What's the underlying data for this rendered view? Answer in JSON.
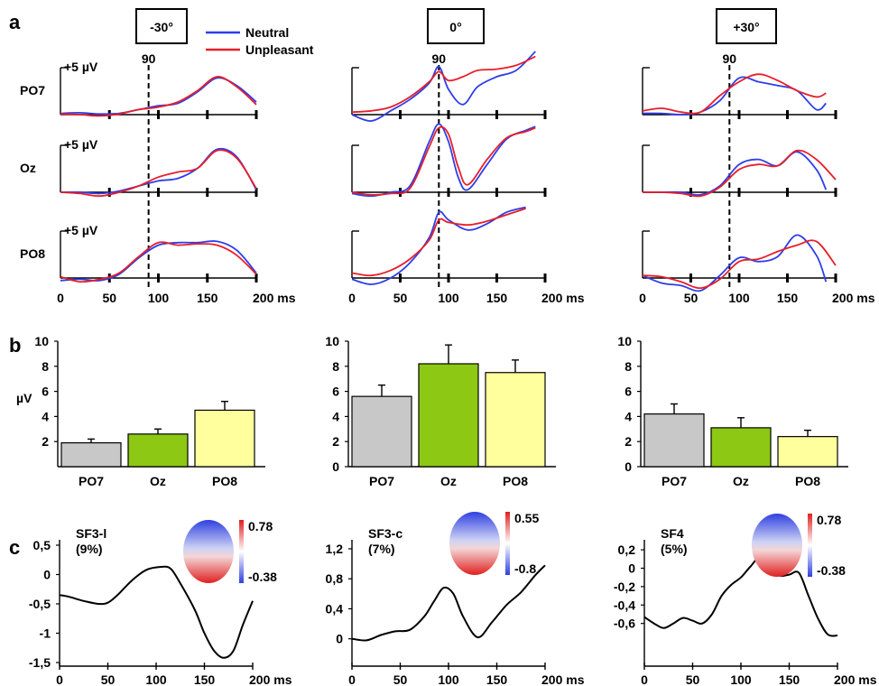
{
  "colors": {
    "neutral": "#2e3ee8",
    "unpleasant": "#e81e2a",
    "gray": "#c8c8c8",
    "green": "#8cc814",
    "yellow": "#ffff9e",
    "black": "#000000"
  },
  "chart_data": [
    {
      "panel": "a",
      "type": "line",
      "legend": [
        "Neutral",
        "Unpleasant"
      ],
      "x_ticks": [
        "0",
        "50",
        "100",
        "150",
        "200 ms"
      ],
      "x_unit": "ms",
      "scale_label": "+5 µV",
      "marker_label": "90",
      "marker_x": 90,
      "columns": [
        {
          "header": "-30°",
          "rows": [
            {
              "label": "PO7",
              "series": [
                {
                  "name": "Neutral",
                  "x": [
                    0,
                    20,
                    40,
                    60,
                    80,
                    100,
                    120,
                    140,
                    160,
                    180,
                    200
                  ],
                  "y": [
                    0.1,
                    0.15,
                    0.05,
                    0.1,
                    0.4,
                    0.7,
                    0.9,
                    1.8,
                    2.9,
                    2.3,
                    1.0
                  ]
                },
                {
                  "name": "Unpleasant",
                  "x": [
                    0,
                    20,
                    40,
                    60,
                    80,
                    100,
                    120,
                    140,
                    160,
                    180,
                    200
                  ],
                  "y": [
                    0.05,
                    0.0,
                    -0.1,
                    0.05,
                    0.4,
                    0.6,
                    1.0,
                    1.9,
                    3.0,
                    2.2,
                    0.8
                  ]
                }
              ]
            },
            {
              "label": "Oz",
              "series": [
                {
                  "name": "Neutral",
                  "x": [
                    0,
                    20,
                    40,
                    60,
                    80,
                    100,
                    120,
                    140,
                    160,
                    180,
                    200
                  ],
                  "y": [
                    0.0,
                    0.0,
                    -0.1,
                    0.1,
                    0.5,
                    0.9,
                    1.1,
                    1.9,
                    3.4,
                    2.8,
                    0.2
                  ]
                },
                {
                  "name": "Unpleasant",
                  "x": [
                    0,
                    20,
                    40,
                    60,
                    80,
                    100,
                    120,
                    140,
                    160,
                    180,
                    200
                  ],
                  "y": [
                    0.0,
                    -0.1,
                    -0.3,
                    0.0,
                    0.5,
                    1.2,
                    1.6,
                    1.9,
                    3.3,
                    2.7,
                    0.3
                  ]
                }
              ]
            },
            {
              "label": "PO8",
              "series": [
                {
                  "name": "Neutral",
                  "x": [
                    0,
                    20,
                    40,
                    60,
                    80,
                    100,
                    120,
                    140,
                    160,
                    180,
                    200
                  ],
                  "y": [
                    -0.2,
                    -0.1,
                    -0.2,
                    0.3,
                    1.6,
                    2.6,
                    2.8,
                    2.8,
                    2.9,
                    2.2,
                    0.4
                  ]
                },
                {
                  "name": "Unpleasant",
                  "x": [
                    0,
                    20,
                    40,
                    60,
                    80,
                    100,
                    120,
                    140,
                    160,
                    180,
                    200
                  ],
                  "y": [
                    0.1,
                    -0.3,
                    -0.1,
                    0.4,
                    1.7,
                    2.8,
                    2.6,
                    2.7,
                    2.6,
                    1.8,
                    0.3
                  ]
                }
              ]
            }
          ]
        },
        {
          "header": "0°",
          "rows": [
            {
              "label": "PO7",
              "series": [
                {
                  "name": "Neutral",
                  "x": [
                    0,
                    20,
                    40,
                    60,
                    80,
                    90,
                    100,
                    115,
                    130,
                    150,
                    170,
                    190
                  ],
                  "y": [
                    0.0,
                    -0.5,
                    0.3,
                    1.2,
                    2.5,
                    3.8,
                    2.0,
                    0.8,
                    2.2,
                    3.0,
                    3.5,
                    5.0
                  ]
                },
                {
                  "name": "Unpleasant",
                  "x": [
                    0,
                    20,
                    40,
                    60,
                    80,
                    90,
                    100,
                    115,
                    130,
                    150,
                    170,
                    190
                  ],
                  "y": [
                    0.2,
                    0.3,
                    0.6,
                    1.4,
                    2.6,
                    3.4,
                    2.7,
                    3.0,
                    3.5,
                    3.6,
                    3.9,
                    4.6
                  ]
                }
              ]
            },
            {
              "label": "Oz",
              "series": [
                {
                  "name": "Neutral",
                  "x": [
                    0,
                    20,
                    40,
                    60,
                    80,
                    90,
                    100,
                    110,
                    120,
                    140,
                    160,
                    180,
                    190
                  ],
                  "y": [
                    -0.1,
                    -0.3,
                    0.0,
                    0.5,
                    4.0,
                    5.4,
                    4.0,
                    1.2,
                    0.2,
                    2.2,
                    4.2,
                    4.9,
                    5.2
                  ]
                },
                {
                  "name": "Unpleasant",
                  "x": [
                    0,
                    20,
                    40,
                    60,
                    80,
                    90,
                    100,
                    110,
                    120,
                    140,
                    160,
                    180,
                    190
                  ],
                  "y": [
                    0.0,
                    -0.2,
                    -0.1,
                    0.3,
                    3.6,
                    5.1,
                    4.6,
                    2.0,
                    0.6,
                    2.6,
                    4.3,
                    4.8,
                    5.1
                  ]
                }
              ]
            },
            {
              "label": "PO8",
              "series": [
                {
                  "name": "Neutral",
                  "x": [
                    0,
                    20,
                    40,
                    60,
                    80,
                    90,
                    100,
                    120,
                    140,
                    160,
                    180
                  ],
                  "y": [
                    -0.1,
                    -0.5,
                    0.0,
                    1.2,
                    3.2,
                    5.2,
                    4.6,
                    3.8,
                    4.3,
                    5.2,
                    5.6
                  ]
                },
                {
                  "name": "Unpleasant",
                  "x": [
                    0,
                    20,
                    40,
                    60,
                    80,
                    90,
                    100,
                    120,
                    140,
                    160,
                    180
                  ],
                  "y": [
                    0.4,
                    0.2,
                    0.6,
                    1.5,
                    3.0,
                    4.6,
                    4.4,
                    4.2,
                    4.5,
                    5.0,
                    5.5
                  ]
                }
              ]
            }
          ]
        },
        {
          "header": "+30°",
          "rows": [
            {
              "label": "PO7",
              "series": [
                {
                  "name": "Neutral",
                  "x": [
                    0,
                    20,
                    40,
                    60,
                    80,
                    100,
                    120,
                    140,
                    160,
                    180,
                    190
                  ],
                  "y": [
                    0.1,
                    0.1,
                    0.0,
                    0.2,
                    1.1,
                    2.9,
                    2.6,
                    2.3,
                    1.9,
                    0.4,
                    0.9
                  ]
                },
                {
                  "name": "Unpleasant",
                  "x": [
                    0,
                    20,
                    40,
                    60,
                    80,
                    100,
                    120,
                    140,
                    160,
                    180,
                    190
                  ],
                  "y": [
                    0.3,
                    0.5,
                    0.2,
                    0.2,
                    1.5,
                    2.6,
                    3.2,
                    2.7,
                    1.9,
                    1.4,
                    1.7
                  ]
                }
              ]
            },
            {
              "label": "Oz",
              "series": [
                {
                  "name": "Neutral",
                  "x": [
                    0,
                    20,
                    40,
                    60,
                    80,
                    100,
                    120,
                    140,
                    160,
                    180,
                    190
                  ],
                  "y": [
                    0.0,
                    0.0,
                    0.0,
                    -0.2,
                    0.5,
                    2.2,
                    2.6,
                    2.1,
                    3.2,
                    1.8,
                    0.2
                  ]
                },
                {
                  "name": "Unpleasant",
                  "x": [
                    0,
                    20,
                    40,
                    60,
                    80,
                    100,
                    120,
                    140,
                    160,
                    180,
                    200
                  ],
                  "y": [
                    0.0,
                    0.0,
                    -0.1,
                    -0.3,
                    0.4,
                    1.8,
                    2.2,
                    2.1,
                    3.3,
                    2.6,
                    1.0
                  ]
                }
              ]
            },
            {
              "label": "PO8",
              "series": [
                {
                  "name": "Neutral",
                  "x": [
                    0,
                    20,
                    40,
                    60,
                    80,
                    100,
                    120,
                    140,
                    160,
                    180,
                    190
                  ],
                  "y": [
                    0.2,
                    -0.4,
                    -0.6,
                    -1.0,
                    0.2,
                    1.6,
                    1.3,
                    1.7,
                    3.4,
                    1.8,
                    -0.3
                  ]
                },
                {
                  "name": "Unpleasant",
                  "x": [
                    0,
                    20,
                    40,
                    60,
                    80,
                    100,
                    120,
                    140,
                    160,
                    180,
                    200
                  ],
                  "y": [
                    0.2,
                    0.1,
                    -0.3,
                    -0.8,
                    -0.1,
                    1.3,
                    1.5,
                    2.1,
                    2.6,
                    2.9,
                    1.0
                  ]
                }
              ]
            }
          ]
        }
      ]
    },
    {
      "panel": "b",
      "type": "bar",
      "ylabel": "µV",
      "groups": [
        {
          "categories": [
            "PO7",
            "Oz",
            "PO8"
          ],
          "values": [
            1.9,
            2.6,
            4.5
          ],
          "errors": [
            0.3,
            0.4,
            0.7
          ],
          "ylim": [
            0,
            10
          ],
          "yticks": [
            "2",
            "4",
            "6",
            "8",
            "10"
          ]
        },
        {
          "categories": [
            "PO7",
            "Oz",
            "PO8"
          ],
          "values": [
            5.6,
            8.2,
            7.5
          ],
          "errors": [
            0.9,
            1.5,
            1.0
          ],
          "ylim": [
            0,
            10
          ],
          "yticks": [
            "0",
            "2",
            "4",
            "6",
            "8",
            "10"
          ]
        },
        {
          "categories": [
            "PO7",
            "Oz",
            "PO8"
          ],
          "values": [
            4.2,
            3.1,
            2.4
          ],
          "errors": [
            0.8,
            0.8,
            0.5
          ],
          "ylim": [
            0,
            10
          ],
          "yticks": [
            "0",
            "2",
            "4",
            "6",
            "8",
            "10"
          ]
        }
      ]
    },
    {
      "panel": "c",
      "type": "line",
      "plots": [
        {
          "title": "SF3-l",
          "percent": "(9%)",
          "colorbar_max": "0.78",
          "colorbar_min": "-0.38",
          "ylim": [
            -1.5,
            0.5
          ],
          "yticks": [
            "0,5",
            "0",
            "-0,5",
            "-1",
            "-1,5"
          ],
          "x": [
            0,
            10,
            25,
            40,
            50,
            60,
            75,
            90,
            105,
            115,
            125,
            140,
            150,
            160,
            170,
            180,
            190,
            200
          ],
          "y": [
            -0.35,
            -0.38,
            -0.45,
            -0.5,
            -0.48,
            -0.35,
            -0.1,
            0.08,
            0.13,
            0.1,
            -0.15,
            -0.6,
            -1.0,
            -1.3,
            -1.42,
            -1.3,
            -0.85,
            -0.45
          ]
        },
        {
          "title": "SF3-c",
          "percent": "(7%)",
          "colorbar_max": "0.55",
          "colorbar_min": "-0.8",
          "ylim": [
            -0.1,
            1.2
          ],
          "yticks": [
            "1,2",
            "0,8",
            "0,4",
            "0"
          ],
          "x": [
            0,
            15,
            30,
            45,
            60,
            75,
            85,
            95,
            105,
            115,
            130,
            145,
            160,
            175,
            190,
            200
          ],
          "y": [
            0.0,
            -0.02,
            0.05,
            0.1,
            0.12,
            0.3,
            0.5,
            0.68,
            0.6,
            0.3,
            0.02,
            0.22,
            0.45,
            0.62,
            0.85,
            0.98
          ]
        },
        {
          "title": "SF4",
          "percent": "(5%)",
          "colorbar_max": "0.78",
          "colorbar_min": "-0.38",
          "ylim": [
            -0.75,
            0.25
          ],
          "yticks": [
            "0,2",
            "0",
            "-0,2",
            "-0,4",
            "-0,6"
          ],
          "x": [
            0,
            10,
            20,
            30,
            40,
            50,
            60,
            70,
            80,
            90,
            100,
            110,
            120,
            130,
            140,
            150,
            160,
            170,
            180,
            190,
            200
          ],
          "y": [
            -0.53,
            -0.6,
            -0.65,
            -0.6,
            -0.54,
            -0.57,
            -0.6,
            -0.5,
            -0.3,
            -0.18,
            -0.1,
            0.02,
            0.12,
            0.0,
            -0.08,
            -0.07,
            -0.05,
            -0.3,
            -0.55,
            -0.72,
            -0.73
          ]
        }
      ],
      "x_ticks": [
        "0",
        "50",
        "100",
        "150",
        "200 ms"
      ]
    }
  ]
}
